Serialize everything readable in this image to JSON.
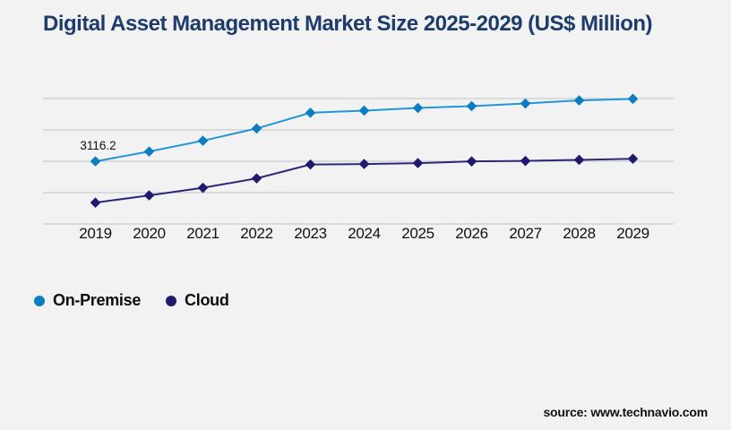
{
  "title": "Digital Asset Management Market Size 2025-2029 (US$ Million)",
  "source": "source: www.technavio.com",
  "colors": {
    "background": "#f2f2f3",
    "title": "#1d3c6b",
    "gridline": "#cbcbcb",
    "text": "#111111",
    "on_premise_line": "#2196d6",
    "on_premise_marker": "#0d7dc2",
    "cloud_line": "#2b2878",
    "cloud_marker": "#1e1b6e"
  },
  "chart_data": {
    "type": "line",
    "title": "Digital Asset Management Market Size 2025-2029 (US$ Million)",
    "xlabel": "",
    "ylabel": "US$ Million",
    "categories": [
      "2019",
      "2020",
      "2021",
      "2022",
      "2023",
      "2024",
      "2025",
      "2026",
      "2027",
      "2028",
      "2029"
    ],
    "series": [
      {
        "name": "On-Premise",
        "line_color": "#2196d6",
        "marker_color": "#0d7dc2",
        "marker": "diamond",
        "values": [
          3116.2,
          3435,
          3785,
          4180,
          4690,
          4760,
          4845,
          4905,
          4990,
          5090,
          5140
        ]
      },
      {
        "name": "Cloud",
        "line_color": "#2b2878",
        "marker_color": "#1e1b6e",
        "marker": "diamond",
        "values": [
          1780,
          2015,
          2260,
          2565,
          3015,
          3030,
          3060,
          3115,
          3130,
          3165,
          3200
        ]
      }
    ],
    "annotations": [
      {
        "series": 0,
        "index": 0,
        "text": "3116.2"
      }
    ],
    "ylim": [
      1090,
      5150
    ],
    "gridlines": 5,
    "grid": "horizontal-only",
    "y_axis_labels": "hidden",
    "legend_position": "bottom-left"
  }
}
